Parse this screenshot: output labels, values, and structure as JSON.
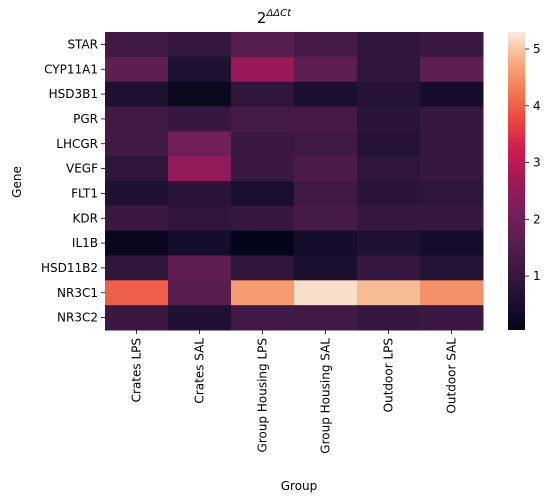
{
  "chart_data": {
    "type": "heatmap",
    "title": {
      "base": "2",
      "superscript": "ΔΔCt"
    },
    "xlabel": "Group",
    "ylabel": "Gene",
    "x": [
      "Crates LPS",
      "Crates SAL",
      "Group Housing LPS",
      "Group Housing SAL",
      "Outdoor LPS",
      "Outdoor SAL"
    ],
    "y": [
      "STAR",
      "CYP11A1",
      "HSD3B1",
      "PGR",
      "LHCGR",
      "VEGF",
      "FLT1",
      "KDR",
      "IL1B",
      "HSD11B2",
      "NR3C1",
      "NR3C2"
    ],
    "values": [
      [
        1.2,
        1.0,
        1.6,
        1.3,
        0.9,
        1.1
      ],
      [
        1.7,
        0.6,
        2.6,
        1.7,
        0.9,
        1.7
      ],
      [
        0.6,
        0.2,
        0.9,
        0.5,
        0.7,
        0.4
      ],
      [
        1.2,
        1.0,
        1.3,
        1.3,
        0.8,
        1.0
      ],
      [
        1.2,
        2.0,
        1.1,
        1.2,
        0.7,
        1.0
      ],
      [
        0.9,
        2.5,
        1.1,
        1.4,
        0.9,
        1.0
      ],
      [
        0.6,
        0.8,
        0.5,
        1.2,
        0.8,
        0.9
      ],
      [
        1.1,
        0.9,
        1.0,
        1.3,
        1.0,
        1.0
      ],
      [
        0.15,
        0.4,
        0.05,
        0.4,
        0.6,
        0.4
      ],
      [
        0.9,
        1.7,
        0.9,
        0.5,
        1.0,
        0.7
      ],
      [
        4.0,
        1.6,
        4.6,
        5.2,
        4.9,
        4.5
      ],
      [
        1.1,
        0.6,
        1.2,
        1.2,
        1.0,
        1.1
      ]
    ],
    "colorbar": {
      "min": 0.05,
      "max": 5.3,
      "ticks": [
        1,
        2,
        3,
        4,
        5
      ]
    },
    "colormap": "rocket",
    "grid": false
  }
}
